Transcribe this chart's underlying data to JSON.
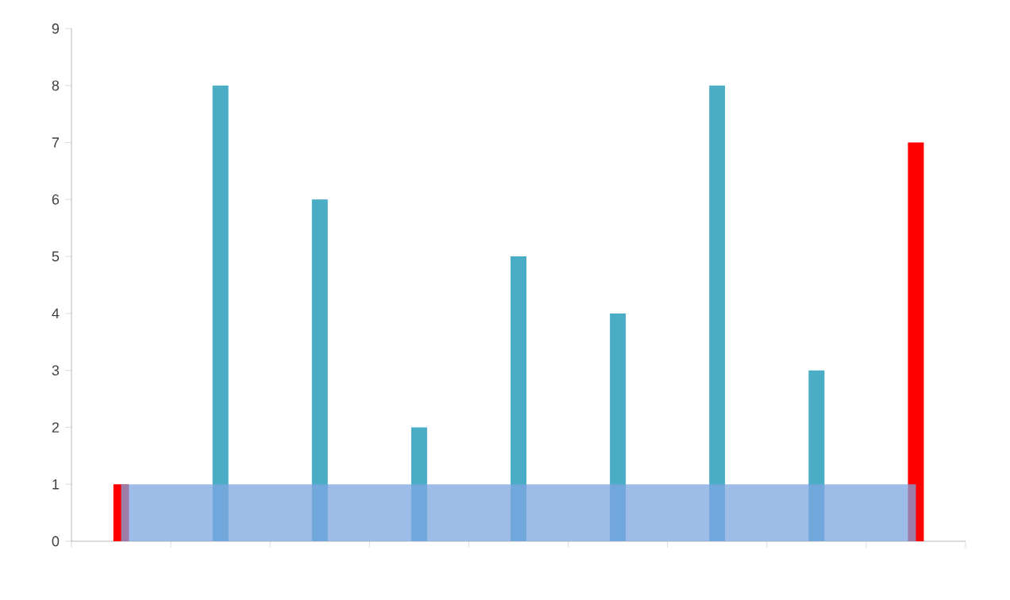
{
  "chart_data": {
    "type": "bar",
    "categories": [
      null,
      null,
      null,
      null,
      null,
      null,
      null,
      null,
      null
    ],
    "series": [
      {
        "type": "area",
        "color": "#7ea6e0",
        "values": [
          1,
          1,
          1,
          1,
          1,
          1,
          1,
          1,
          1
        ]
      },
      {
        "colors": [
          "#ff0000",
          "#4bacc6",
          "#4bacc6",
          "#4bacc6",
          "#4bacc6",
          "#4bacc6",
          "#4bacc6",
          "#4bacc6",
          "#ff0000"
        ],
        "values": [
          1,
          8,
          6,
          2,
          5,
          4,
          8,
          3,
          7
        ]
      }
    ],
    "ylim": [
      0,
      9
    ],
    "yticks": [
      0,
      1,
      2,
      3,
      4,
      5,
      6,
      7,
      8,
      9
    ],
    "grid": false
  }
}
